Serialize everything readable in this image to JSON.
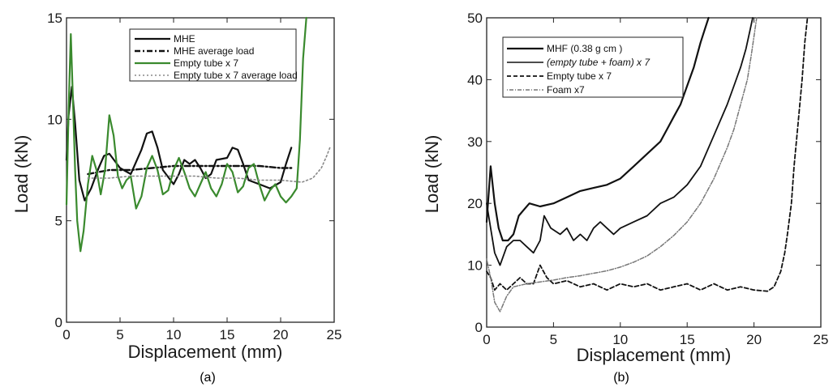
{
  "chart_data": [
    {
      "type": "line",
      "caption": "(a)",
      "xlabel": "Displacement (mm)",
      "ylabel": "Load (kN)",
      "xlim": [
        0,
        25
      ],
      "ylim": [
        0,
        15
      ],
      "xticks": [
        0,
        5,
        10,
        15,
        20,
        25
      ],
      "yticks": [
        0,
        5,
        10,
        15
      ],
      "xtick_labels": [
        "0",
        "5",
        "10",
        "15",
        "20",
        "25"
      ],
      "ytick_labels": [
        "0",
        "5",
        "10",
        "15"
      ],
      "legend_position": "top-right",
      "series": [
        {
          "name": "MHE",
          "style": "solid",
          "color": "#111111",
          "width": 2.2,
          "x": [
            0,
            0.2,
            0.5,
            0.8,
            1.2,
            1.7,
            2.3,
            3,
            3.5,
            4,
            5,
            6,
            7,
            7.5,
            8,
            8.5,
            9,
            10,
            10.5,
            11,
            11.5,
            12,
            12.5,
            13,
            13.5,
            14,
            15,
            15.5,
            16,
            16.5,
            17,
            18,
            19,
            20,
            20.5,
            21
          ],
          "y": [
            8,
            10.2,
            11.6,
            9.8,
            7,
            6,
            6.6,
            7.6,
            8.2,
            8.3,
            7.6,
            7.3,
            8.5,
            9.3,
            9.4,
            8.6,
            7.5,
            6.8,
            7.3,
            8,
            7.8,
            8,
            7.6,
            7.1,
            7.3,
            8,
            8.1,
            8.6,
            8.5,
            7.8,
            7,
            6.8,
            6.6,
            6.9,
            7.8,
            8.6
          ]
        },
        {
          "name": "MHE average load",
          "style": "dashdot",
          "color": "#111111",
          "width": 2.4,
          "x": [
            2,
            4,
            6,
            8,
            10,
            12,
            14,
            16,
            18,
            20,
            21
          ],
          "y": [
            7.3,
            7.5,
            7.5,
            7.6,
            7.7,
            7.7,
            7.7,
            7.7,
            7.7,
            7.6,
            7.6
          ]
        },
        {
          "name": "Empty tube x 7",
          "style": "solid",
          "color": "#3a8a2e",
          "width": 2.2,
          "x": [
            0,
            0.2,
            0.4,
            0.6,
            0.8,
            1.0,
            1.3,
            1.6,
            2.0,
            2.4,
            2.8,
            3.2,
            3.6,
            4.0,
            4.4,
            4.8,
            5.2,
            5.6,
            6.0,
            6.5,
            7.0,
            7.5,
            8.0,
            8.5,
            9.0,
            9.5,
            10.0,
            10.5,
            11.0,
            11.5,
            12.0,
            12.5,
            13.0,
            13.5,
            14.0,
            14.5,
            15.0,
            15.5,
            16.0,
            16.5,
            17.0,
            17.5,
            18.0,
            18.5,
            19.0,
            19.5,
            20.0,
            20.5,
            21.0,
            21.5,
            21.8,
            22.1,
            22.4
          ],
          "y": [
            5.8,
            10.5,
            14.2,
            11,
            7.5,
            5,
            3.5,
            4.5,
            6.8,
            8.2,
            7.5,
            6.3,
            7.5,
            10.2,
            9.2,
            7.2,
            6.6,
            7,
            7.2,
            5.6,
            6.2,
            7.6,
            8.2,
            7.5,
            6.3,
            6.5,
            7.5,
            8.1,
            7.4,
            6.6,
            6.2,
            6.8,
            7.4,
            6.6,
            6.2,
            6.8,
            7.8,
            7.4,
            6.4,
            6.7,
            7.6,
            7.8,
            6.8,
            6,
            6.5,
            6.8,
            6.2,
            5.9,
            6.2,
            6.6,
            9,
            13,
            15.8
          ]
        },
        {
          "name": "Empty tube x 7 average load",
          "style": "dotted",
          "color": "#888888",
          "width": 1.6,
          "x": [
            2,
            4,
            6,
            8,
            10,
            12,
            14,
            16,
            18,
            20,
            21,
            22,
            23,
            23.8,
            24.3,
            24.6
          ],
          "y": [
            7.1,
            7.1,
            7.2,
            7.2,
            7.2,
            7.2,
            7.1,
            7.1,
            7.0,
            7.0,
            6.95,
            6.9,
            7.1,
            7.6,
            8.2,
            8.6
          ]
        }
      ]
    },
    {
      "type": "line",
      "caption": "(b)",
      "xlabel": "Displacement (mm)",
      "ylabel": "Load (kN)",
      "xlim": [
        0,
        25
      ],
      "ylim": [
        0,
        50
      ],
      "xticks": [
        0,
        5,
        10,
        15,
        20,
        25
      ],
      "yticks": [
        0,
        10,
        20,
        30,
        40,
        50
      ],
      "xtick_labels": [
        "0",
        "5",
        "10",
        "15",
        "20",
        "25"
      ],
      "ytick_labels": [
        "0",
        "10",
        "20",
        "30",
        "40",
        "50"
      ],
      "legend_position": "top-left",
      "series": [
        {
          "name": "MHF (0.38 g cm )",
          "style": "solid",
          "color": "#111111",
          "width": 2.2,
          "x": [
            0,
            0.3,
            0.6,
            0.9,
            1.2,
            1.6,
            2.0,
            2.4,
            2.8,
            3.2,
            4,
            5,
            6,
            7,
            8,
            9,
            10,
            11,
            12,
            13,
            13.5,
            14,
            14.5,
            15,
            15.5,
            16,
            16.3,
            16.6
          ],
          "y": [
            17,
            26,
            20,
            16,
            14,
            14,
            15,
            18,
            19,
            20,
            19.5,
            20,
            21,
            22,
            22.5,
            23,
            24,
            26,
            28,
            30,
            32,
            34,
            36,
            39,
            42,
            46,
            48,
            50
          ]
        },
        {
          "name": "(empty tube + foam) x 7",
          "style": "solid",
          "color": "#111111",
          "width": 1.8,
          "x": [
            0,
            0.3,
            0.6,
            1.0,
            1.5,
            2.0,
            2.5,
            3.0,
            3.5,
            4.0,
            4.3,
            4.8,
            5.5,
            6.0,
            6.5,
            7.0,
            7.5,
            8.0,
            8.5,
            9.0,
            9.5,
            10,
            11,
            12,
            13,
            14,
            15,
            16,
            17,
            18,
            18.5,
            19,
            19.4,
            19.7,
            19.9
          ],
          "y": [
            20,
            16,
            12,
            10,
            13,
            14,
            14,
            13,
            12,
            14,
            18,
            16,
            15,
            16,
            14,
            15,
            14,
            16,
            17,
            16,
            15,
            16,
            17,
            18,
            20,
            21,
            23,
            26,
            31,
            36,
            39,
            42,
            45,
            48,
            50
          ]
        },
        {
          "name": "Empty tube x 7",
          "style": "dashed",
          "color": "#111111",
          "width": 1.8,
          "x": [
            0,
            0.3,
            0.6,
            1.0,
            1.5,
            2.0,
            2.5,
            3.0,
            3.5,
            4.0,
            4.5,
            5.0,
            6,
            7,
            8,
            9,
            10,
            11,
            12,
            13,
            14,
            15,
            16,
            17,
            18,
            19,
            20,
            21,
            21.5,
            22,
            22.3,
            22.5,
            22.8,
            23.0,
            23.3,
            23.6,
            23.8,
            24.0
          ],
          "y": [
            9,
            8,
            6,
            7,
            6,
            7,
            8,
            7,
            7,
            10,
            8,
            7,
            7.5,
            6.5,
            7,
            6,
            7,
            6.5,
            7,
            6,
            6.5,
            7,
            6,
            7,
            6,
            6.5,
            6,
            5.8,
            6.5,
            9,
            12,
            15,
            20,
            26,
            33,
            40,
            46,
            50
          ]
        },
        {
          "name": "Foam x7",
          "style": "dotdash",
          "color": "#777777",
          "width": 1.5,
          "x": [
            0,
            0.3,
            0.6,
            1.0,
            1.5,
            2.0,
            3,
            4,
            5,
            6,
            7,
            8,
            9,
            10,
            11,
            12,
            13,
            14,
            15,
            16,
            17,
            18,
            18.5,
            19,
            19.5,
            19.8,
            20,
            20.2
          ],
          "y": [
            11,
            8,
            4,
            2.5,
            5,
            6.5,
            7,
            7.3,
            7.6,
            8,
            8.3,
            8.7,
            9.1,
            9.7,
            10.5,
            11.5,
            13,
            14.8,
            17,
            20,
            24,
            29,
            32,
            36,
            40,
            44,
            47,
            50
          ]
        }
      ]
    }
  ]
}
